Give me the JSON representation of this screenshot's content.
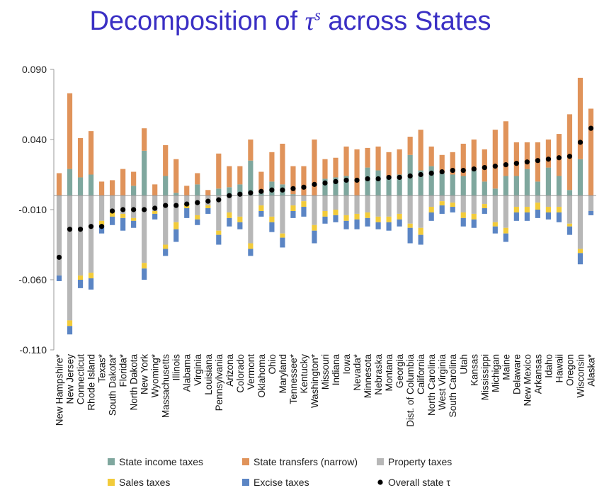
{
  "title": {
    "prefix": "Decomposition of ",
    "symbol": "τ",
    "superscript": "s",
    "suffix": " across States"
  },
  "colors": {
    "income": "#7fa79e",
    "transfers": "#e0935a",
    "property": "#b7b7b7",
    "sales": "#f2cb3a",
    "excise": "#5b85c4",
    "overall": "#000000",
    "axis": "#9a9a9a",
    "title": "#3a2fc4"
  },
  "chart_data": {
    "type": "bar",
    "stacked": true,
    "ylim": [
      -0.11,
      0.09
    ],
    "yticks": [
      -0.11,
      -0.06,
      -0.01,
      0.04,
      0.09
    ],
    "ytick_labels": [
      "-0.110",
      "-0.060",
      "-0.010",
      "0.040",
      "0.090"
    ],
    "grid": false,
    "legend_position": "bottom",
    "categories": [
      "New Hampshire*",
      "New Jersey",
      "Connecticut",
      "Rhode Island",
      "Texas*",
      "South Dakota*",
      "Florida*",
      "North Dakota",
      "New York",
      "Wyoming*",
      "Massachusetts",
      "Illinois",
      "Alabama",
      "Virginia",
      "Louisiana",
      "Pennsylvania",
      "Arizona",
      "Colorado",
      "Vermont",
      "Oklahoma",
      "Ohio",
      "Maryland",
      "Tennessee*",
      "Kentucky",
      "Washington*",
      "Missouri",
      "Indiana",
      "Iowa",
      "Nevada*",
      "Minnesota",
      "Nebraska",
      "Montana",
      "Georgia",
      "Dist. of Columbia",
      "California",
      "North Carolina",
      "West Virginia",
      "South Carolina",
      "Utah",
      "Kansas",
      "Mississippi",
      "Michigan",
      "Maine",
      "Delaware",
      "New Mexico",
      "Arkansas",
      "Idaho",
      "Hawaii",
      "Oregon",
      "Wisconsin",
      "Alaska*"
    ],
    "series": [
      {
        "name": "State income taxes",
        "key": "income",
        "values": [
          0.0,
          0.019,
          0.013,
          0.015,
          0.0,
          0.0,
          0.0,
          0.007,
          0.032,
          0.0,
          0.014,
          0.002,
          0.0,
          0.008,
          0.0,
          0.005,
          0.006,
          0.008,
          0.025,
          0.002,
          0.01,
          0.008,
          0.001,
          0.0,
          0.0,
          0.012,
          0.013,
          0.014,
          0.0,
          0.02,
          0.018,
          0.014,
          0.015,
          0.029,
          0.018,
          0.021,
          0.016,
          0.015,
          0.014,
          0.018,
          0.01,
          0.005,
          0.014,
          0.014,
          0.019,
          0.01,
          0.02,
          0.014,
          0.004,
          0.026,
          0.0
        ]
      },
      {
        "name": "State transfers (narrow)",
        "key": "transfers",
        "values": [
          0.016,
          0.054,
          0.028,
          0.031,
          0.01,
          0.011,
          0.019,
          0.01,
          0.016,
          0.008,
          0.022,
          0.024,
          0.007,
          0.008,
          0.004,
          0.025,
          0.015,
          0.013,
          0.015,
          0.015,
          0.021,
          0.029,
          0.02,
          0.021,
          0.04,
          0.014,
          0.014,
          0.021,
          0.033,
          0.014,
          0.017,
          0.017,
          0.018,
          0.013,
          0.029,
          0.014,
          0.013,
          0.016,
          0.023,
          0.022,
          0.023,
          0.042,
          0.039,
          0.024,
          0.019,
          0.028,
          0.02,
          0.03,
          0.054,
          0.058,
          0.062
        ]
      },
      {
        "name": "Property taxes",
        "key": "property",
        "values": [
          -0.057,
          -0.089,
          -0.057,
          -0.055,
          -0.018,
          -0.012,
          -0.013,
          -0.016,
          -0.048,
          -0.011,
          -0.035,
          -0.019,
          -0.006,
          -0.014,
          -0.007,
          -0.025,
          -0.012,
          -0.015,
          -0.034,
          -0.007,
          -0.015,
          -0.027,
          -0.007,
          -0.004,
          -0.021,
          -0.011,
          -0.01,
          -0.014,
          -0.013,
          -0.012,
          -0.015,
          -0.015,
          -0.013,
          -0.02,
          -0.023,
          -0.008,
          -0.004,
          -0.005,
          -0.012,
          -0.013,
          -0.006,
          -0.019,
          -0.023,
          -0.008,
          -0.008,
          -0.005,
          -0.008,
          -0.008,
          -0.02,
          -0.038,
          -0.011
        ]
      },
      {
        "name": "Sales taxes",
        "key": "sales",
        "values": [
          0.0,
          -0.004,
          -0.003,
          -0.004,
          -0.003,
          -0.003,
          -0.003,
          -0.002,
          -0.004,
          -0.002,
          -0.003,
          -0.005,
          -0.003,
          -0.003,
          -0.002,
          -0.003,
          -0.004,
          -0.004,
          -0.004,
          -0.004,
          -0.004,
          -0.003,
          -0.004,
          -0.004,
          -0.004,
          -0.004,
          -0.004,
          -0.004,
          -0.004,
          -0.004,
          -0.004,
          -0.004,
          -0.004,
          -0.003,
          -0.005,
          -0.004,
          -0.003,
          -0.003,
          -0.004,
          -0.004,
          -0.003,
          -0.003,
          -0.004,
          -0.004,
          -0.004,
          -0.005,
          -0.004,
          -0.004,
          -0.002,
          -0.003,
          0.0
        ]
      },
      {
        "name": "Excise taxes",
        "key": "excise",
        "values": [
          -0.004,
          -0.006,
          -0.006,
          -0.008,
          -0.006,
          -0.006,
          -0.009,
          -0.005,
          -0.008,
          -0.004,
          -0.005,
          -0.009,
          -0.007,
          -0.004,
          -0.004,
          -0.007,
          -0.006,
          -0.005,
          -0.005,
          -0.004,
          -0.007,
          -0.007,
          -0.005,
          -0.007,
          -0.009,
          -0.005,
          -0.005,
          -0.006,
          -0.007,
          -0.006,
          -0.005,
          -0.006,
          -0.005,
          -0.011,
          -0.007,
          -0.006,
          -0.006,
          -0.004,
          -0.006,
          -0.006,
          -0.004,
          -0.005,
          -0.006,
          -0.006,
          -0.006,
          -0.006,
          -0.005,
          -0.007,
          -0.006,
          -0.008,
          -0.003
        ]
      },
      {
        "name": "Overall state τ",
        "key": "overall",
        "type": "scatter",
        "values": [
          -0.044,
          -0.024,
          -0.024,
          -0.022,
          -0.022,
          -0.011,
          -0.01,
          -0.01,
          -0.01,
          -0.009,
          -0.007,
          -0.007,
          -0.006,
          -0.005,
          -0.004,
          -0.003,
          0.0,
          0.001,
          0.002,
          0.003,
          0.004,
          0.004,
          0.005,
          0.006,
          0.008,
          0.009,
          0.01,
          0.011,
          0.011,
          0.012,
          0.012,
          0.013,
          0.013,
          0.014,
          0.015,
          0.016,
          0.017,
          0.018,
          0.018,
          0.019,
          0.02,
          0.021,
          0.022,
          0.023,
          0.024,
          0.025,
          0.026,
          0.027,
          0.028,
          0.038,
          0.048
        ]
      }
    ]
  }
}
